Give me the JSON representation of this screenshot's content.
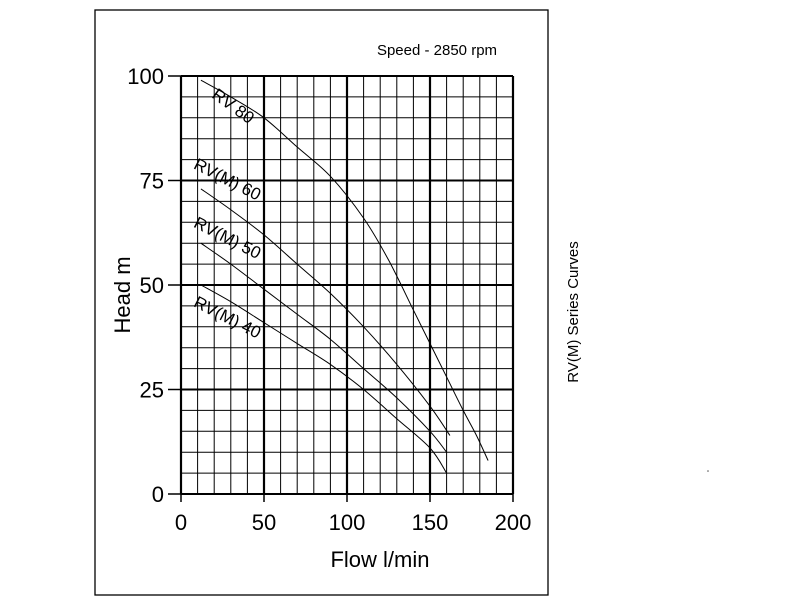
{
  "chart_data": {
    "type": "line",
    "annotation": "Speed - 2850 rpm",
    "side_title": "RV(M) Series Curves",
    "xlabel": "Flow l/min",
    "ylabel": "Head m",
    "xlim": [
      0,
      200
    ],
    "ylim": [
      0,
      100
    ],
    "x_ticks": [
      0,
      50,
      100,
      150,
      200
    ],
    "y_ticks": [
      0,
      25,
      50,
      75,
      100
    ],
    "grid": true,
    "series": [
      {
        "name": "RV 80",
        "x": [
          12,
          30,
          50,
          70,
          90,
          110,
          125,
          140,
          150,
          160,
          170,
          178,
          185
        ],
        "y": [
          99,
          95,
          90,
          83,
          76,
          66,
          56,
          44,
          36,
          28,
          20,
          14,
          8
        ]
      },
      {
        "name": "RV(M) 60",
        "x": [
          12,
          30,
          50,
          70,
          90,
          110,
          130,
          150,
          162
        ],
        "y": [
          73,
          68,
          62,
          55,
          48,
          40,
          31,
          21,
          14
        ]
      },
      {
        "name": "RV(M) 50",
        "x": [
          12,
          30,
          50,
          70,
          90,
          110,
          130,
          150,
          160
        ],
        "y": [
          60,
          55,
          49,
          43,
          37,
          30,
          23,
          15,
          10
        ]
      },
      {
        "name": "RV(M) 40",
        "x": [
          12,
          30,
          50,
          70,
          90,
          110,
          130,
          150,
          160
        ],
        "y": [
          50,
          46,
          41,
          36,
          31,
          25,
          18,
          11,
          5
        ]
      }
    ]
  }
}
